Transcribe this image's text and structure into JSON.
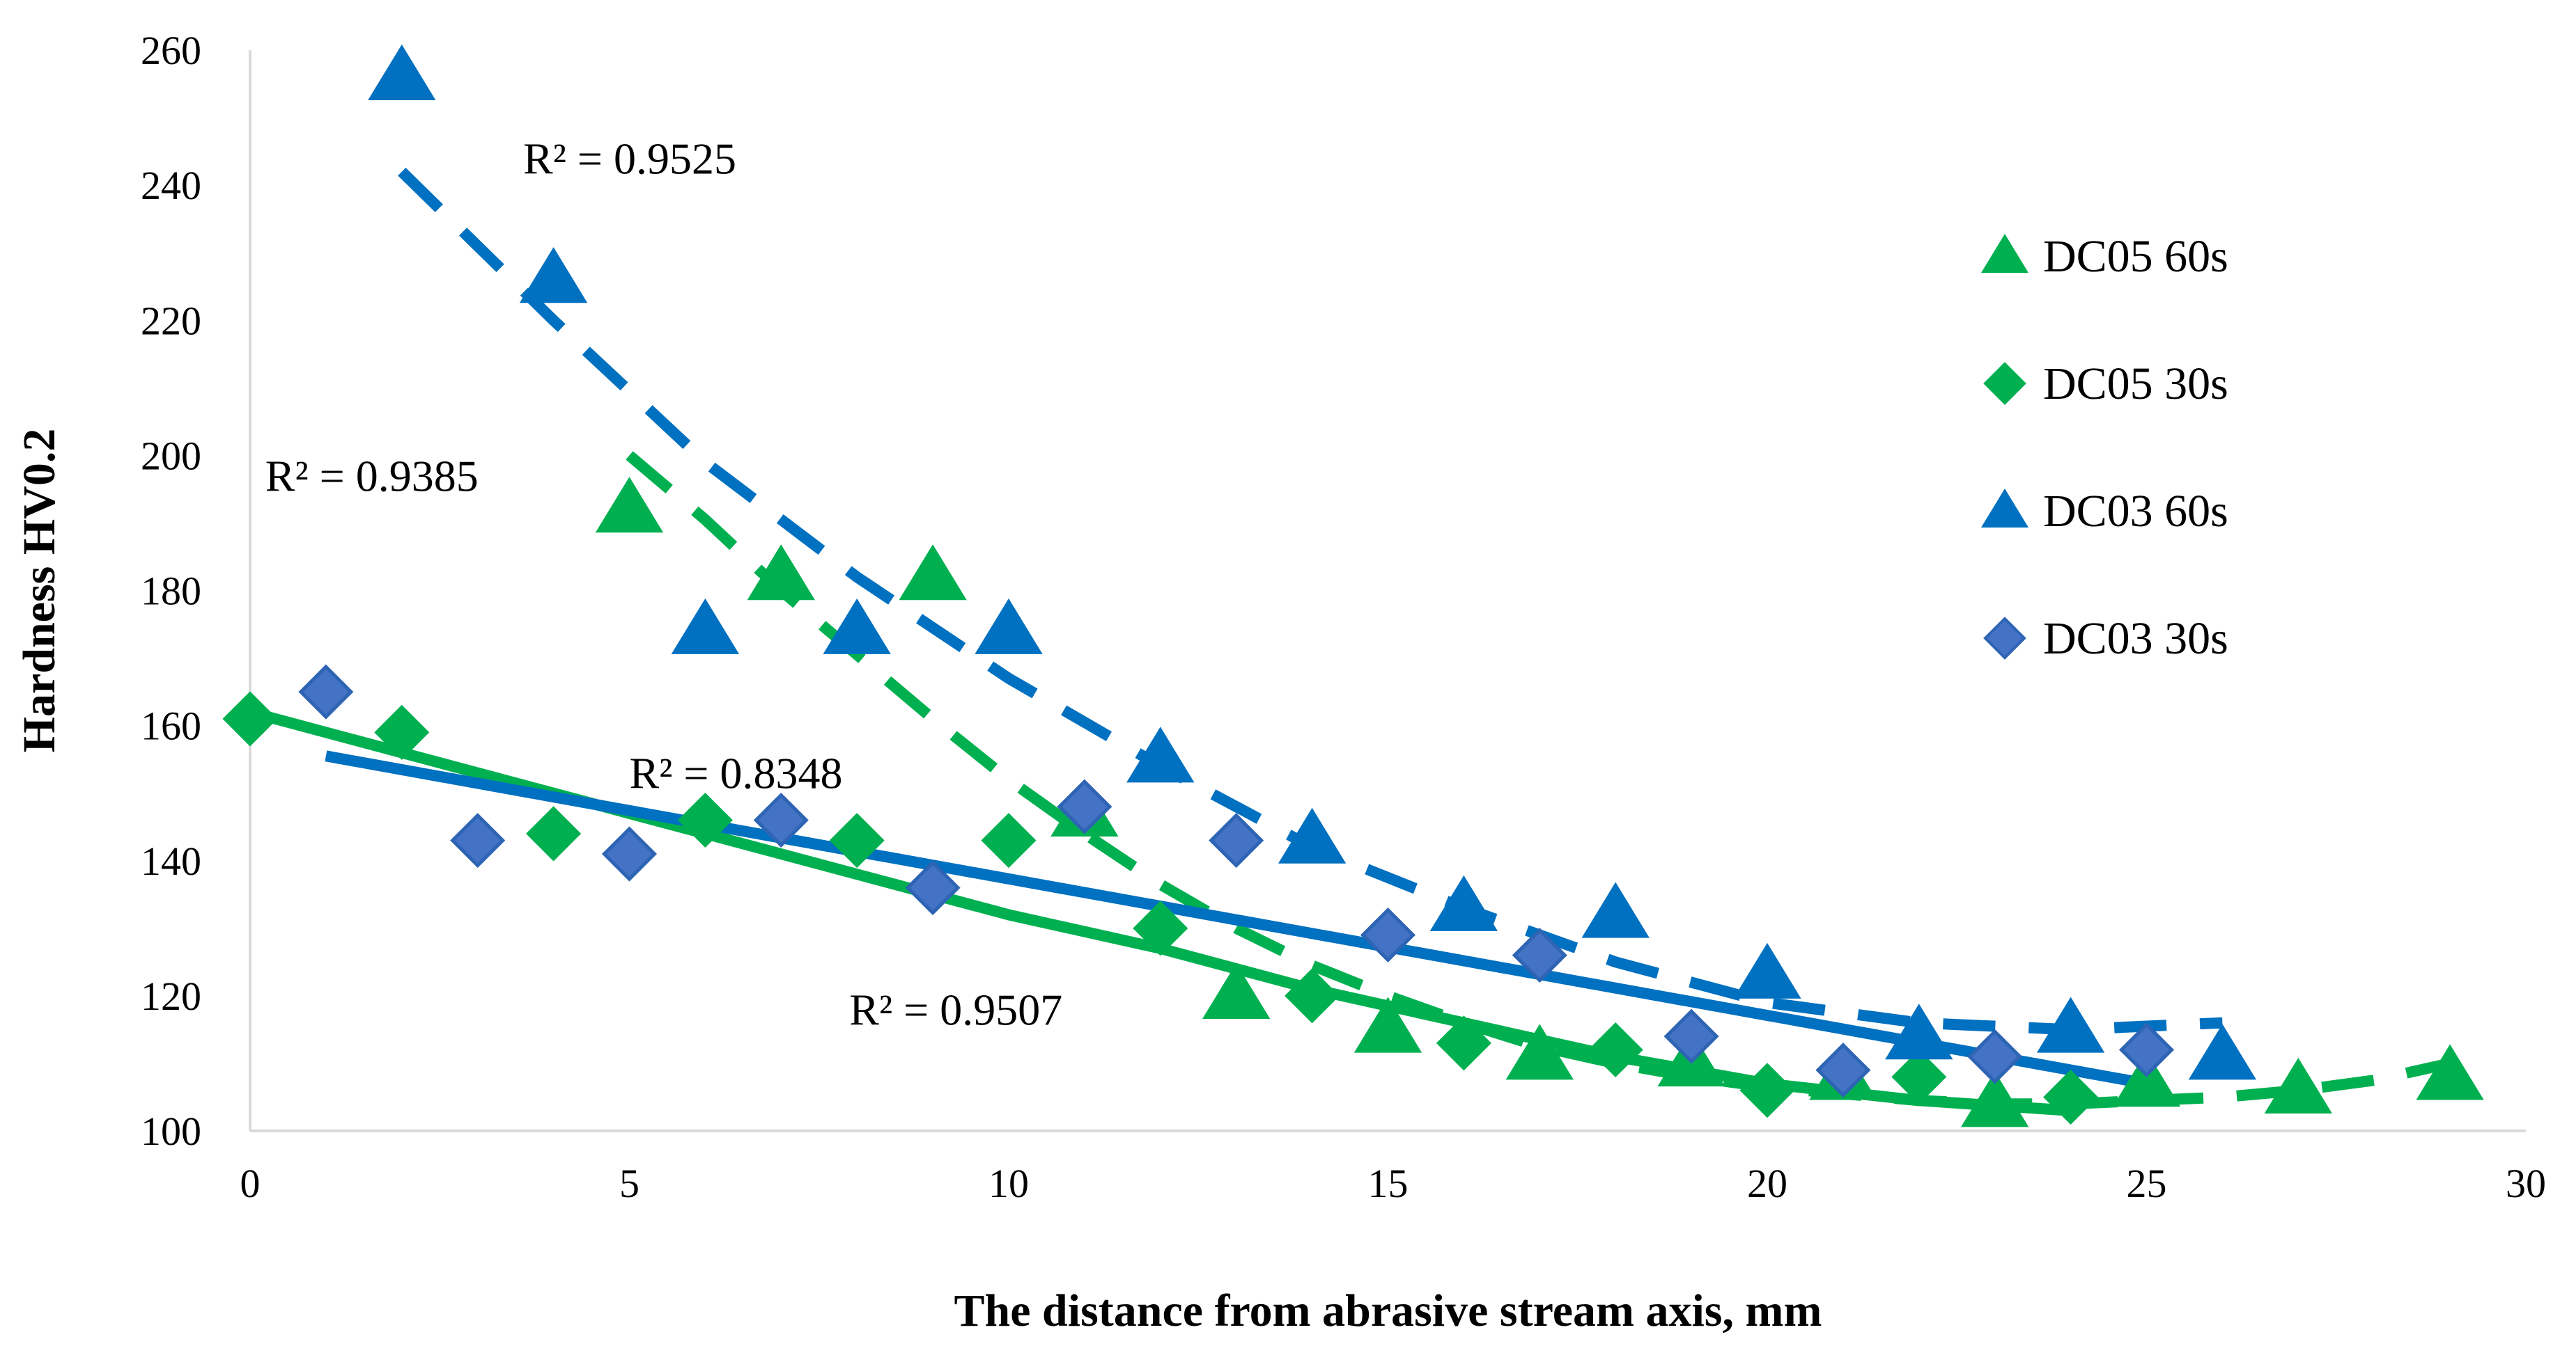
{
  "chart_data": {
    "type": "scatter",
    "title": "",
    "xlabel": "The distance from abrasive stream axis, mm",
    "ylabel": "Hardness HV0.2",
    "xlim": [
      0,
      30
    ],
    "ylim": [
      100,
      260
    ],
    "xticks": [
      0,
      5,
      10,
      15,
      20,
      25,
      30
    ],
    "yticks": [
      100,
      120,
      140,
      160,
      180,
      200,
      220,
      240,
      260
    ],
    "legend_position": "right",
    "series": [
      {
        "name": "DC05 60s",
        "color": "#00B050",
        "marker": "triangle",
        "points": [
          [
            5,
            192
          ],
          [
            7,
            182
          ],
          [
            9,
            182
          ],
          [
            11,
            147
          ],
          [
            13,
            120
          ],
          [
            15,
            115
          ],
          [
            17,
            111
          ],
          [
            19,
            110
          ],
          [
            21,
            108
          ],
          [
            23,
            104
          ],
          [
            25,
            107
          ],
          [
            27,
            106
          ],
          [
            29,
            108
          ]
        ],
        "trend": {
          "style": "dashed",
          "x": [
            5,
            6,
            7,
            8,
            9,
            10,
            11,
            12,
            13,
            14,
            15,
            16,
            17,
            18,
            19,
            20,
            21,
            22,
            23,
            24,
            25,
            26,
            27,
            28,
            29
          ],
          "y": [
            200,
            190.5,
            180,
            170.5,
            161,
            152,
            144,
            136.5,
            130,
            124.5,
            120,
            116,
            112.5,
            110,
            108,
            106.5,
            105.5,
            104.5,
            104,
            104,
            104.5,
            105,
            106,
            107.5,
            110
          ]
        }
      },
      {
        "name": "DC05 30s",
        "color": "#00B050",
        "marker": "diamond",
        "points": [
          [
            0,
            161
          ],
          [
            2,
            159
          ],
          [
            4,
            144
          ],
          [
            6,
            146
          ],
          [
            8,
            143
          ],
          [
            10,
            143
          ],
          [
            12,
            130
          ],
          [
            14,
            120
          ],
          [
            16,
            113
          ],
          [
            18,
            112
          ],
          [
            20,
            106
          ],
          [
            22,
            108
          ],
          [
            24,
            105
          ]
        ],
        "trend": {
          "style": "solid",
          "x": [
            0,
            2,
            4,
            6,
            8,
            10,
            12,
            14,
            16,
            18,
            20,
            22,
            24
          ],
          "y": [
            162,
            156,
            150,
            144,
            138,
            132,
            127,
            121,
            116,
            111,
            107,
            104.5,
            103
          ]
        }
      },
      {
        "name": "DC03 60s",
        "color": "#0070C0",
        "marker": "triangle",
        "points": [
          [
            2,
            256
          ],
          [
            4,
            226
          ],
          [
            6,
            174
          ],
          [
            8,
            174
          ],
          [
            10,
            174
          ],
          [
            12,
            155
          ],
          [
            14,
            143
          ],
          [
            16,
            133
          ],
          [
            18,
            132
          ],
          [
            20,
            123
          ],
          [
            22,
            114
          ],
          [
            24,
            115
          ],
          [
            26,
            111
          ]
        ],
        "trend": {
          "style": "dashed",
          "x": [
            2,
            4,
            6,
            8,
            10,
            12,
            14,
            16,
            18,
            20,
            22,
            24,
            26
          ],
          "y": [
            242,
            220,
            199,
            182,
            167,
            154,
            142,
            133,
            125,
            119,
            116,
            115,
            116
          ]
        }
      },
      {
        "name": "DC03 30s",
        "color": "#4472C4",
        "marker": "diamond",
        "points": [
          [
            1,
            165
          ],
          [
            3,
            143
          ],
          [
            5,
            141
          ],
          [
            7,
            146
          ],
          [
            9,
            136
          ],
          [
            11,
            148
          ],
          [
            13,
            143
          ],
          [
            15,
            129
          ],
          [
            17,
            126
          ],
          [
            19,
            114
          ],
          [
            21,
            109
          ],
          [
            23,
            111
          ],
          [
            25,
            112
          ]
        ],
        "trend": {
          "style": "solid",
          "color": "#0070C0",
          "x": [
            1,
            25
          ],
          "y": [
            155.5,
            107
          ]
        }
      }
    ],
    "annotations": [
      {
        "text": "R² = 0.9525",
        "x": 3.6,
        "y": 244,
        "anchor": "start"
      },
      {
        "text": "R² = 0.9385",
        "x": 0.2,
        "y": 197,
        "anchor": "start"
      },
      {
        "text": "R² = 0.8348",
        "x": 5.0,
        "y": 153,
        "anchor": "start"
      },
      {
        "text": "R² = 0.9507",
        "x": 7.9,
        "y": 118,
        "anchor": "start"
      }
    ]
  }
}
